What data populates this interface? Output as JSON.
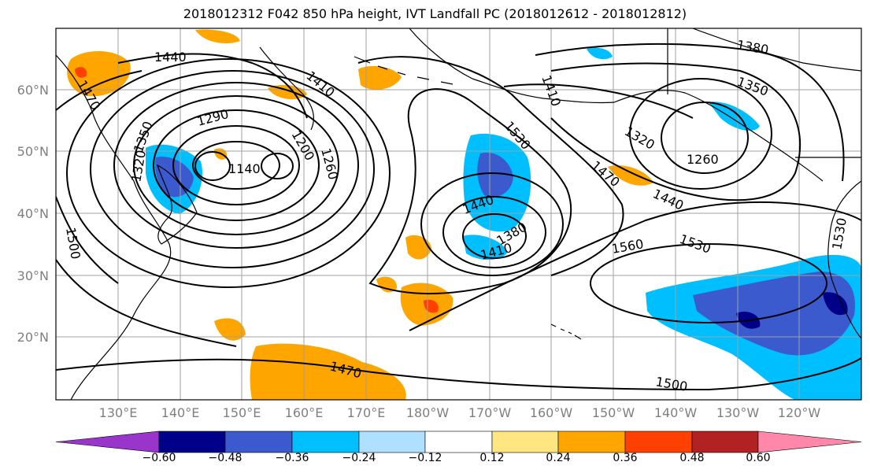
{
  "title": "2018012312 F042 850 hPa height, IVT Landfall PC (2018012612 - 2018012812)",
  "lat_labels": [
    "60°N",
    "50°N",
    "40°N",
    "30°N",
    "20°N"
  ],
  "lon_labels": [
    "130°E",
    "140°E",
    "150°E",
    "160°E",
    "170°E",
    "180°W",
    "170°W",
    "160°W",
    "150°W",
    "140°W",
    "130°W",
    "120°W"
  ],
  "contour_labels": [
    "1440",
    "1470",
    "1410",
    "1350",
    "1290",
    "1320",
    "1140",
    "1200",
    "1260",
    "1500",
    "1530",
    "1440",
    "1380",
    "1410",
    "1410",
    "1380",
    "1350",
    "1320",
    "1260",
    "1470",
    "1440",
    "1560",
    "1530",
    "1470",
    "1500",
    "1530"
  ],
  "colorbar": {
    "ticks": [
      "−0.60",
      "−0.48",
      "−0.36",
      "−0.24",
      "−0.12",
      "0.12",
      "0.24",
      "0.36",
      "0.48",
      "0.60"
    ],
    "colors": [
      "#9a35cc",
      "#000088",
      "#3a5acd",
      "#00bfff",
      "#b0e0ff",
      "#ffffff",
      "#ffe680",
      "#ffa500",
      "#ff4000",
      "#b22222",
      "#ff88aa"
    ]
  }
}
